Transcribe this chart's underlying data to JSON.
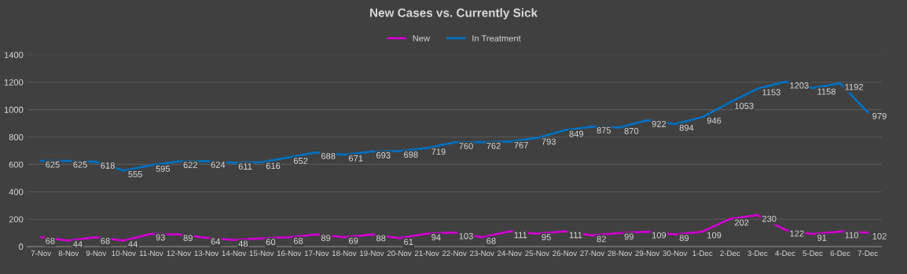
{
  "chart_data": {
    "type": "line",
    "title": "New Cases vs. Currently Sick",
    "categories": [
      "7-Nov",
      "8-Nov",
      "9-Nov",
      "10-Nov",
      "11-Nov",
      "12-Nov",
      "13-Nov",
      "14-Nov",
      "15-Nov",
      "16-Nov",
      "17-Nov",
      "18-Nov",
      "19-Nov",
      "20-Nov",
      "21-Nov",
      "22-Nov",
      "23-Nov",
      "24-Nov",
      "25-Nov",
      "26-Nov",
      "27-Nov",
      "28-Nov",
      "29-Nov",
      "30-Nov",
      "1-Dec",
      "2-Dec",
      "3-Dec",
      "4-Dec",
      "5-Dec",
      "6-Dec",
      "7-Dec"
    ],
    "series": [
      {
        "name": "New",
        "color": "#cc00cc",
        "values": [
          68,
          44,
          68,
          44,
          93,
          89,
          64,
          48,
          60,
          68,
          89,
          69,
          88,
          61,
          94,
          103,
          68,
          111,
          95,
          111,
          82,
          99,
          109,
          89,
          109,
          202,
          230,
          122,
          91,
          110,
          102
        ]
      },
      {
        "name": "In Treatment",
        "color": "#0070c0",
        "values": [
          625,
          625,
          618,
          555,
          595,
          622,
          624,
          611,
          616,
          652,
          688,
          671,
          693,
          698,
          719,
          760,
          762,
          767,
          793,
          849,
          875,
          870,
          922,
          894,
          946,
          1053,
          1153,
          1203,
          1158,
          1192,
          979
        ]
      }
    ],
    "ylim": [
      0,
      1400
    ],
    "yticks": [
      0,
      200,
      400,
      600,
      800,
      1000,
      1200,
      1400
    ],
    "grid": "y",
    "legend": "top",
    "data_labels": true,
    "marker": "none",
    "line_style": "solid"
  }
}
